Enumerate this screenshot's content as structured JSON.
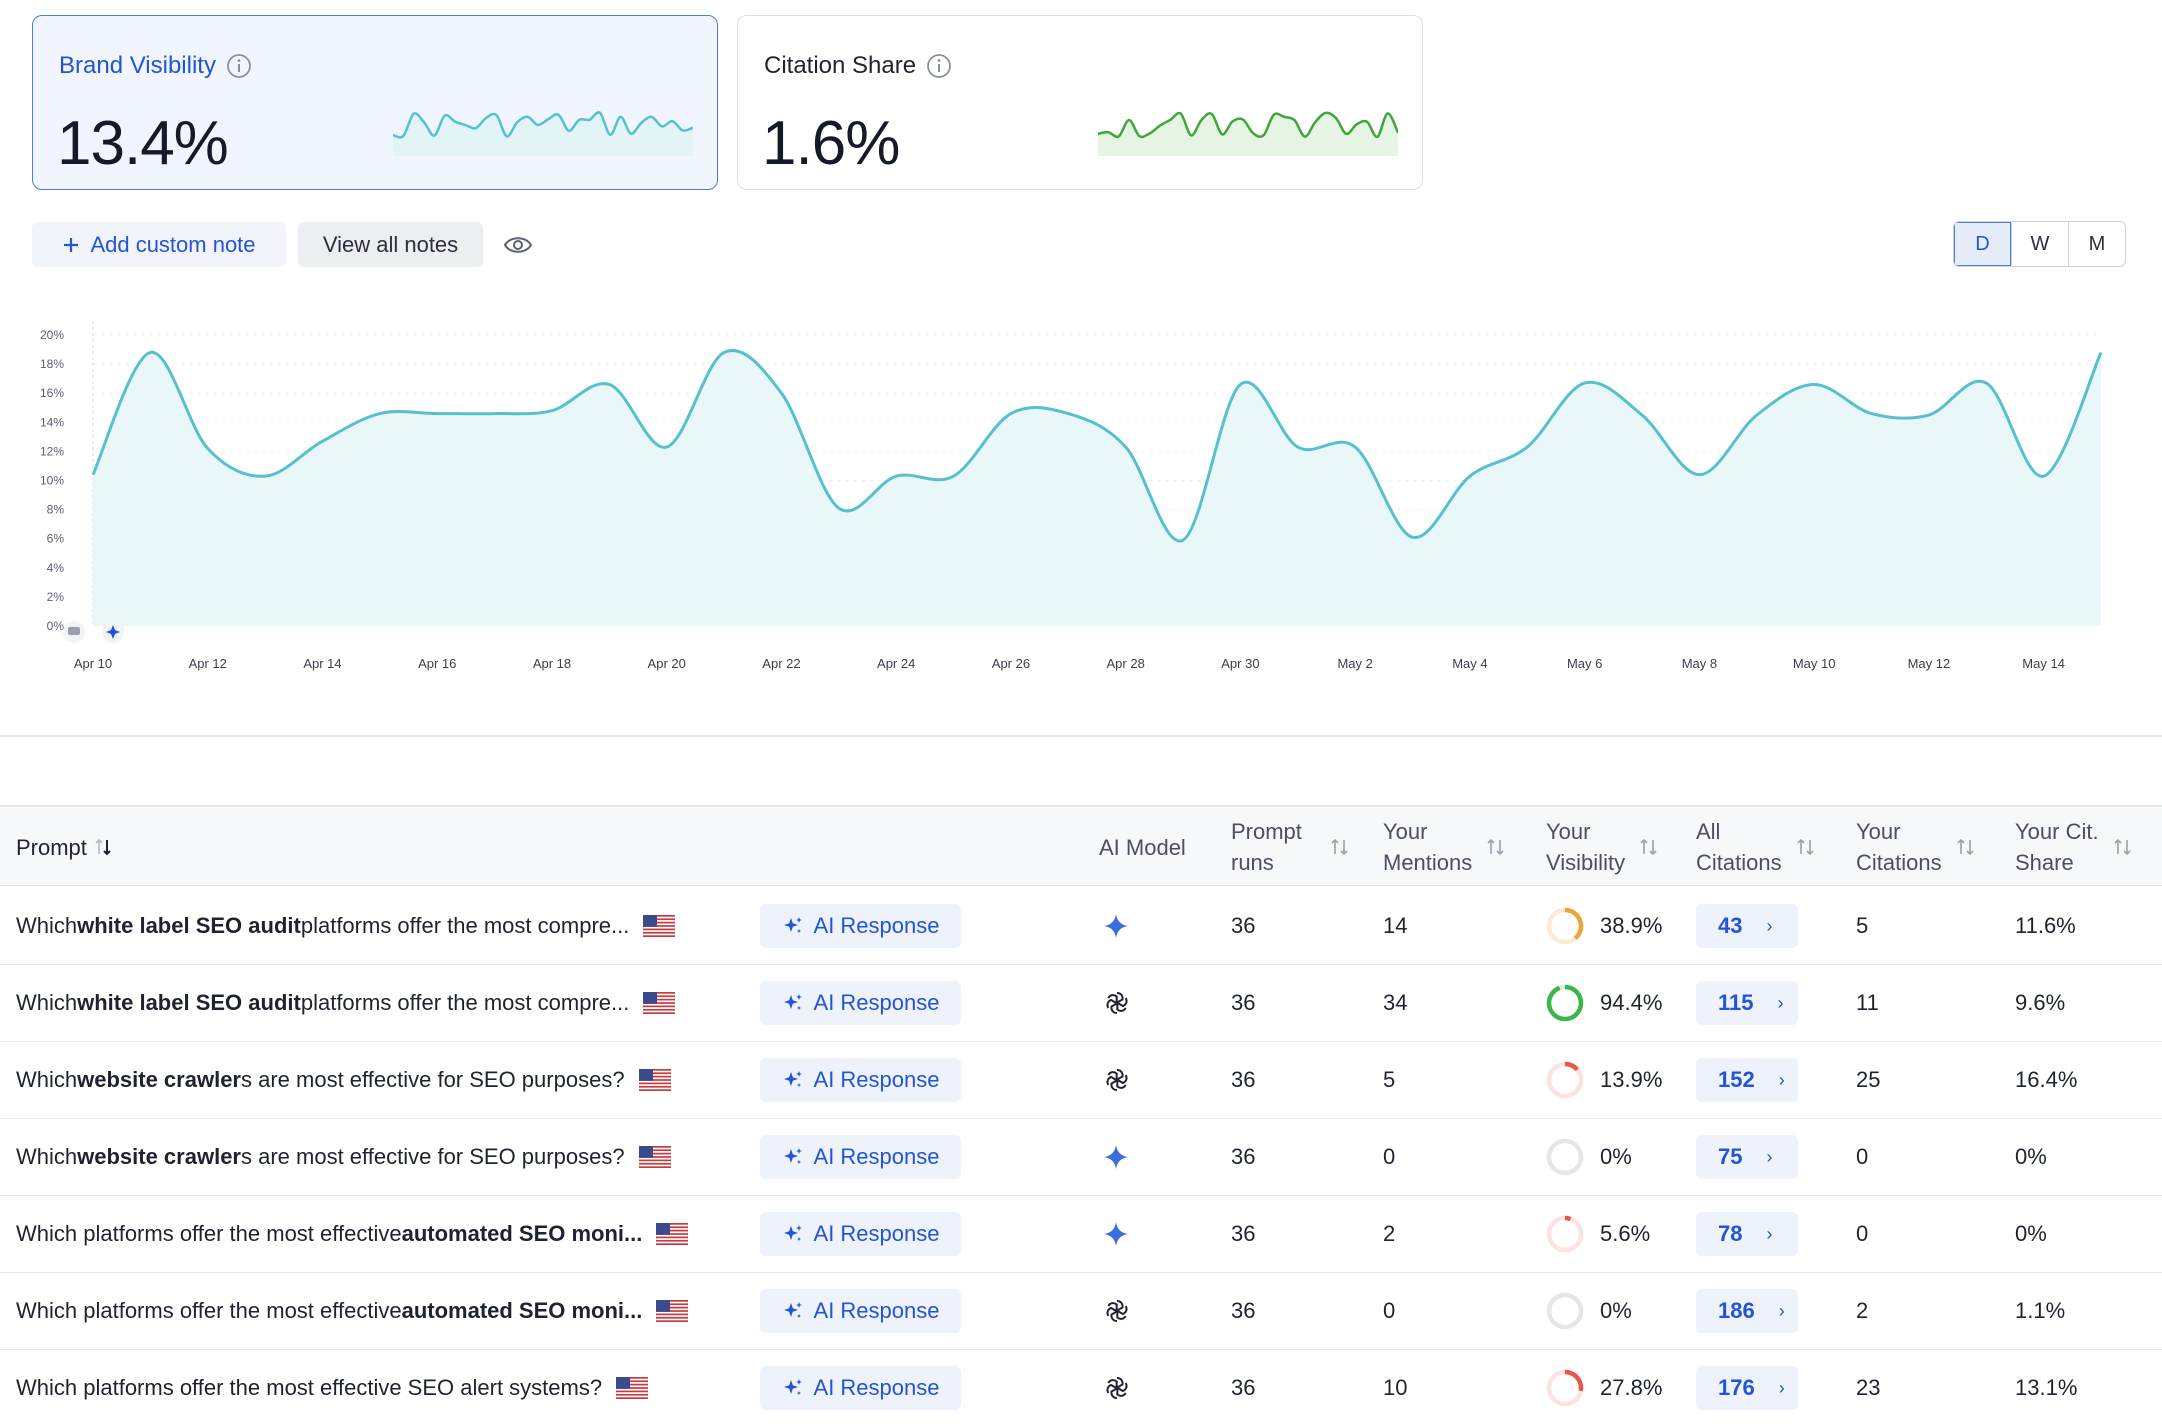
{
  "cards": [
    {
      "title": "Brand Visibility",
      "value": "13.4%",
      "spark_color": "#56c0cf",
      "spark_fill": "#e3f4f7",
      "active": true
    },
    {
      "title": "Citation Share",
      "value": "1.6%",
      "spark_color": "#3fa63b",
      "spark_fill": "#e6f4e3",
      "active": false
    }
  ],
  "toolbar": {
    "add_note_label": "Add custom note",
    "view_notes_label": "View all notes",
    "granularity": [
      "D",
      "W",
      "M"
    ],
    "selected_granularity": "D"
  },
  "chart_data": {
    "type": "area",
    "color": "#56c0cf",
    "fill": "#eaf7f9",
    "ylim": [
      0,
      20
    ],
    "yticks": [
      "0%",
      "2%",
      "4%",
      "6%",
      "8%",
      "10%",
      "12%",
      "14%",
      "16%",
      "18%",
      "20%"
    ],
    "xticks": [
      "Apr 10",
      "Apr 12",
      "Apr 14",
      "Apr 16",
      "Apr 18",
      "Apr 20",
      "Apr 22",
      "Apr 24",
      "Apr 26",
      "Apr 28",
      "Apr 30",
      "May 2",
      "May 4",
      "May 6",
      "May 8",
      "May 10",
      "May 12",
      "May 14"
    ],
    "x": [
      "Apr 10",
      "Apr 11",
      "Apr 12",
      "Apr 13",
      "Apr 14",
      "Apr 15",
      "Apr 16",
      "Apr 17",
      "Apr 18",
      "Apr 19",
      "Apr 20",
      "Apr 21",
      "Apr 22",
      "Apr 23",
      "Apr 24",
      "Apr 25",
      "Apr 26",
      "Apr 27",
      "Apr 28",
      "Apr 29",
      "Apr 30",
      "May 1",
      "May 2",
      "May 3",
      "May 4",
      "May 5",
      "May 6",
      "May 7",
      "May 8",
      "May 9",
      "May 10",
      "May 11",
      "May 12",
      "May 13",
      "May 14",
      "May 15"
    ],
    "values": [
      10.4,
      18.8,
      12.2,
      10.3,
      12.7,
      14.6,
      14.6,
      14.6,
      14.8,
      16.6,
      12.3,
      18.8,
      16.0,
      8.1,
      10.3,
      10.3,
      14.6,
      14.6,
      12.3,
      5.9,
      16.6,
      12.3,
      12.3,
      6.1,
      10.3,
      12.3,
      16.7,
      14.5,
      10.4,
      14.5,
      16.6,
      14.6,
      14.5,
      16.7,
      10.3,
      18.8
    ]
  },
  "table": {
    "headers": {
      "prompt": "Prompt",
      "ai_model": "AI Model",
      "prompt_runs": [
        "Prompt",
        "runs"
      ],
      "mentions": [
        "Your",
        "Mentions"
      ],
      "visibility": [
        "Your",
        "Visibility"
      ],
      "all_citations": [
        "All",
        "Citations"
      ],
      "your_citations": [
        "Your",
        "Citations"
      ],
      "cit_share": [
        "Your Cit.",
        "Share"
      ]
    },
    "ai_response_label": "AI Response",
    "rows": [
      {
        "pre": "Which ",
        "bold": "white label SEO audit",
        "post": " platforms offer the most compre...",
        "model": "gemini-icon",
        "runs": "36",
        "mentions": "14",
        "visibility": "38.9%",
        "vis_fraction": 0.389,
        "vis_color": "#f0a33a",
        "all_citations": "43",
        "your_citations": "5",
        "share": "11.6%"
      },
      {
        "pre": "Which ",
        "bold": "white label SEO audit",
        "post": " platforms offer the most compre...",
        "model": "openai-icon",
        "runs": "36",
        "mentions": "34",
        "visibility": "94.4%",
        "vis_fraction": 0.944,
        "vis_color": "#3cb64a",
        "all_citations": "115",
        "your_citations": "11",
        "share": "9.6%"
      },
      {
        "pre": "Which ",
        "bold": "website crawler",
        "post": "s are most effective for SEO purposes?",
        "model": "openai-icon",
        "runs": "36",
        "mentions": "5",
        "visibility": "13.9%",
        "vis_fraction": 0.139,
        "vis_color": "#e8574a",
        "all_citations": "152",
        "your_citations": "25",
        "share": "16.4%"
      },
      {
        "pre": "Which ",
        "bold": "website crawler",
        "post": "s are most effective for SEO purposes?",
        "model": "gemini-icon",
        "runs": "36",
        "mentions": "0",
        "visibility": "0%",
        "vis_fraction": 0,
        "vis_color": "#e8574a",
        "all_citations": "75",
        "your_citations": "0",
        "share": "0%"
      },
      {
        "pre": "Which platforms offer the most effective ",
        "bold": "automated SEO moni...",
        "post": "",
        "model": "gemini-icon",
        "runs": "36",
        "mentions": "2",
        "visibility": "5.6%",
        "vis_fraction": 0.056,
        "vis_color": "#e8574a",
        "all_citations": "78",
        "your_citations": "0",
        "share": "0%"
      },
      {
        "pre": "Which platforms offer the most effective ",
        "bold": "automated SEO moni...",
        "post": "",
        "model": "openai-icon",
        "runs": "36",
        "mentions": "0",
        "visibility": "0%",
        "vis_fraction": 0,
        "vis_color": "#e8574a",
        "all_citations": "186",
        "your_citations": "2",
        "share": "1.1%"
      },
      {
        "pre": "Which platforms offer the most effective SEO alert systems?",
        "bold": "",
        "post": "",
        "model": "openai-icon",
        "runs": "36",
        "mentions": "10",
        "visibility": "27.8%",
        "vis_fraction": 0.278,
        "vis_color": "#e8574a",
        "all_citations": "176",
        "your_citations": "23",
        "share": "13.1%"
      }
    ]
  }
}
